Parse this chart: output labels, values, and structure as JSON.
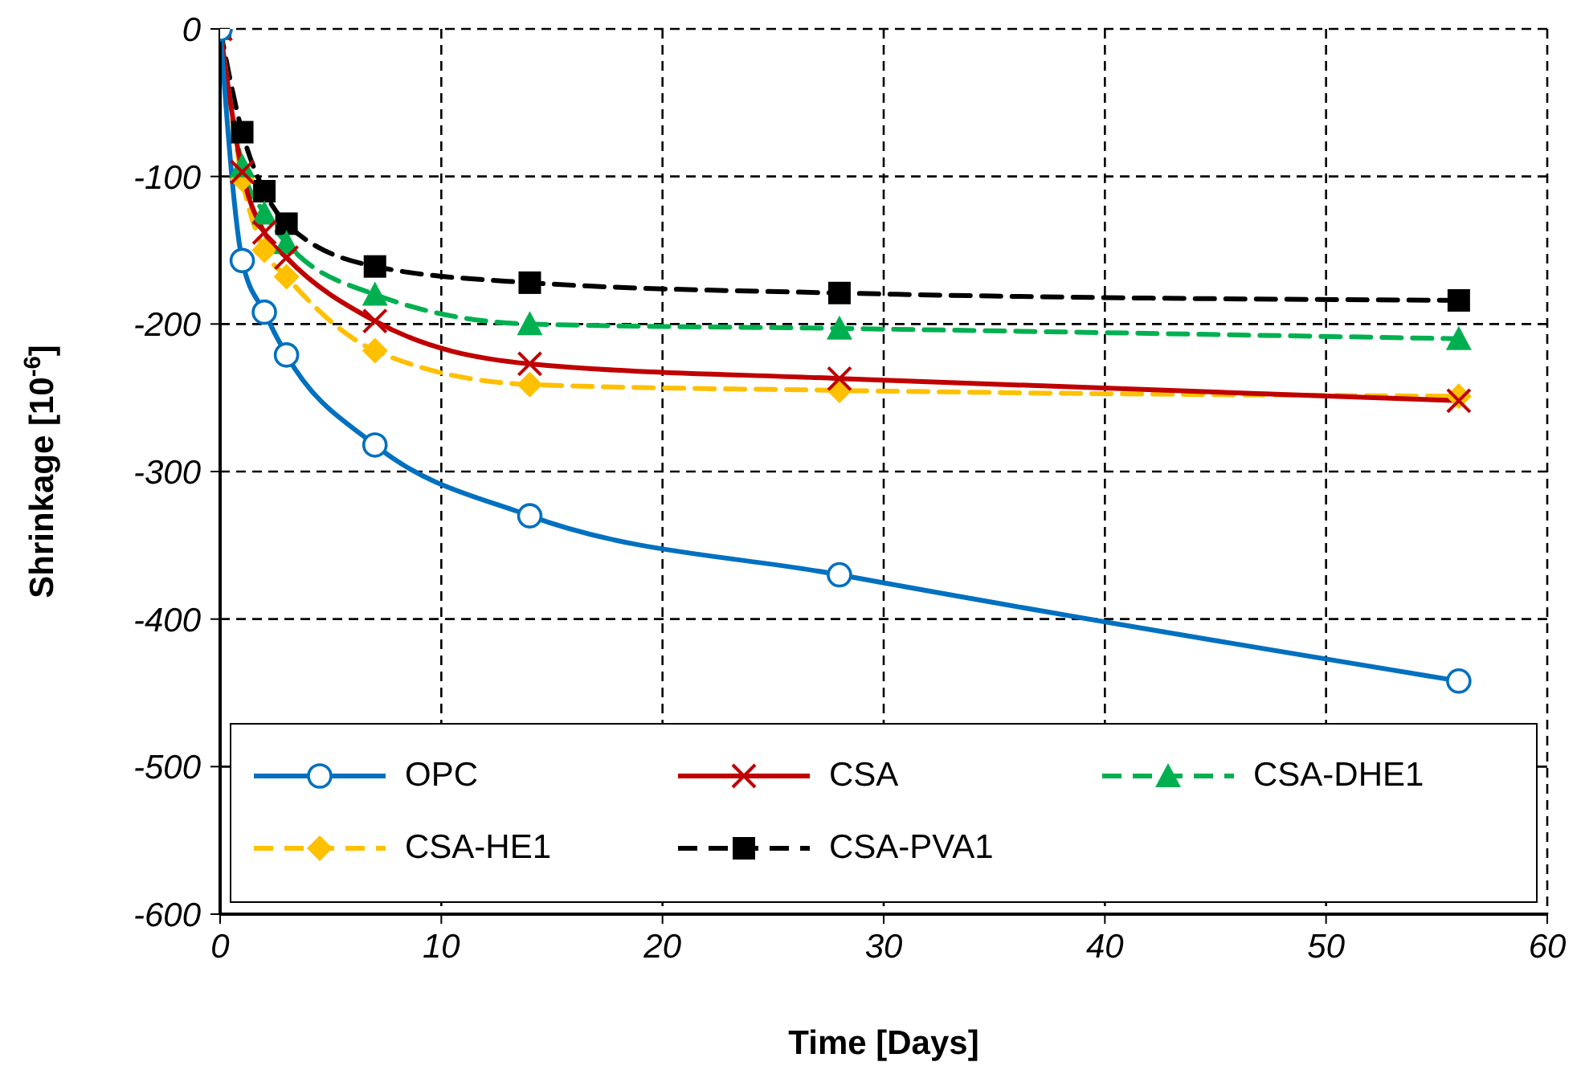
{
  "chart_data": {
    "type": "line",
    "xlabel": "Time [Days]",
    "ylabel": "Shrinkage [10$^{-6}$]",
    "x": [
      0,
      1,
      2,
      3,
      7,
      14,
      28,
      56
    ],
    "xlim": [
      0,
      60
    ],
    "xticks": [
      0,
      10,
      20,
      30,
      40,
      50,
      60
    ],
    "ylim": [
      -600,
      0
    ],
    "yticks": [
      -600,
      -500,
      -400,
      -300,
      -200,
      -100,
      0
    ],
    "grid": true,
    "legend": "bottom",
    "series": [
      {
        "name": "OPC",
        "color": "#0070c0",
        "marker": "circle",
        "line_style": "solid",
        "values": [
          0,
          -157,
          -192,
          -221,
          -282,
          -330,
          -370,
          -442
        ]
      },
      {
        "name": "CSA",
        "color": "#c00000",
        "marker": "cross",
        "line_style": "solid",
        "values": [
          0,
          -97,
          -138,
          -155,
          -198,
          -227,
          -237,
          -252
        ]
      },
      {
        "name": "CSA-DHE1",
        "color": "#00b050",
        "marker": "triangle",
        "line_style": "dashed",
        "values": [
          0,
          -93,
          -125,
          -145,
          -180,
          -200,
          -203,
          -210
        ]
      },
      {
        "name": "CSA-HE1",
        "color": "#ffc000",
        "marker": "diamond",
        "line_style": "dashed",
        "values": [
          0,
          -102,
          -150,
          -168,
          -218,
          -241,
          -245,
          -249
        ]
      },
      {
        "name": "CSA-PVA1",
        "color": "#000000",
        "marker": "square",
        "line_style": "dashed",
        "values": [
          0,
          -70,
          -110,
          -132,
          -161,
          -172,
          -179,
          -184
        ]
      }
    ]
  }
}
